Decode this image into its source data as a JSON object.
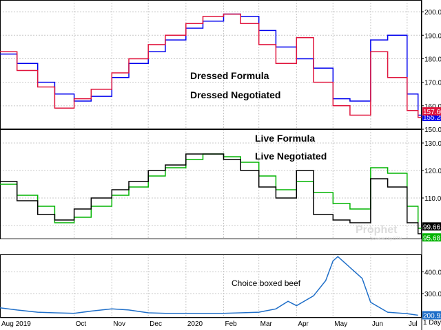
{
  "chart_data": [
    {
      "type": "line",
      "ylim": [
        150,
        205
      ],
      "y_ticks": [
        150,
        160,
        170,
        180,
        190,
        200
      ],
      "grid": true,
      "series": [
        {
          "name": "Dressed Formula",
          "color": "#0000ee",
          "last_value": "155.25",
          "x": [
            "2019-08-01",
            "2019-08-15",
            "2019-09-01",
            "2019-09-15",
            "2019-10-01",
            "2019-10-15",
            "2019-11-01",
            "2019-11-15",
            "2019-12-01",
            "2019-12-15",
            "2020-01-01",
            "2020-01-15",
            "2020-02-01",
            "2020-02-15",
            "2020-03-01",
            "2020-03-15",
            "2020-04-01",
            "2020-04-15",
            "2020-05-01",
            "2020-05-15",
            "2020-06-01",
            "2020-06-15",
            "2020-07-01",
            "2020-07-10"
          ],
          "y": [
            182,
            178,
            170,
            165,
            162,
            164,
            172,
            178,
            183,
            188,
            193,
            196,
            199,
            198,
            192,
            185,
            180,
            176,
            163,
            162,
            188,
            190,
            165,
            156
          ]
        },
        {
          "name": "Dressed Negotiated",
          "color": "#e0143c",
          "last_value": "157.60",
          "x": [
            "2019-08-01",
            "2019-08-15",
            "2019-09-01",
            "2019-09-15",
            "2019-10-01",
            "2019-10-15",
            "2019-11-01",
            "2019-11-15",
            "2019-12-01",
            "2019-12-15",
            "2020-01-01",
            "2020-01-15",
            "2020-02-01",
            "2020-02-15",
            "2020-03-01",
            "2020-03-15",
            "2020-04-01",
            "2020-04-15",
            "2020-05-01",
            "2020-05-15",
            "2020-06-01",
            "2020-06-15",
            "2020-07-01",
            "2020-07-10"
          ],
          "y": [
            183,
            175,
            168,
            159,
            163,
            167,
            174,
            180,
            186,
            190,
            195,
            198,
            199,
            195,
            186,
            178,
            189,
            170,
            160,
            156,
            183,
            172,
            158,
            155
          ]
        }
      ]
    },
    {
      "type": "line",
      "ylim": [
        95,
        135
      ],
      "y_ticks": [
        100,
        110,
        120,
        130
      ],
      "grid": true,
      "series": [
        {
          "name": "Live Formula",
          "color": "#00b400",
          "last_value": "95.68",
          "x": [
            "2019-08-01",
            "2019-08-15",
            "2019-09-01",
            "2019-09-15",
            "2019-10-01",
            "2019-10-15",
            "2019-11-01",
            "2019-11-15",
            "2019-12-01",
            "2019-12-15",
            "2020-01-01",
            "2020-01-15",
            "2020-02-01",
            "2020-02-15",
            "2020-03-01",
            "2020-03-15",
            "2020-04-01",
            "2020-04-15",
            "2020-05-01",
            "2020-05-15",
            "2020-06-01",
            "2020-06-15",
            "2020-07-01",
            "2020-07-10"
          ],
          "y": [
            115,
            111,
            107,
            101,
            103,
            107,
            111,
            114,
            118,
            121,
            124,
            126,
            125,
            123,
            118,
            113,
            116,
            112,
            108,
            106,
            121,
            119,
            107,
            99
          ]
        },
        {
          "name": "Live Negotiated",
          "color": "#000000",
          "last_value": "99.66",
          "x": [
            "2019-08-01",
            "2019-08-15",
            "2019-09-01",
            "2019-09-15",
            "2019-10-01",
            "2019-10-15",
            "2019-11-01",
            "2019-11-15",
            "2019-12-01",
            "2019-12-15",
            "2020-01-01",
            "2020-01-15",
            "2020-02-01",
            "2020-02-15",
            "2020-03-01",
            "2020-03-15",
            "2020-04-01",
            "2020-04-15",
            "2020-05-01",
            "2020-05-15",
            "2020-06-01",
            "2020-06-15",
            "2020-07-01",
            "2020-07-10"
          ],
          "y": [
            116,
            109,
            104,
            102,
            106,
            110,
            113,
            116,
            120,
            122,
            126,
            126,
            124,
            120,
            114,
            110,
            120,
            104,
            102,
            101,
            117,
            114,
            101,
            97
          ]
        }
      ]
    },
    {
      "type": "area",
      "ylim": [
        190,
        480
      ],
      "y_ticks": [
        300,
        400
      ],
      "grid": true,
      "series": [
        {
          "name": "Choice boxed beef",
          "color": "#1e6ec8",
          "last_value": "200.92",
          "x": [
            "2019-08-01",
            "2019-08-15",
            "2019-09-01",
            "2019-09-15",
            "2019-10-01",
            "2019-10-15",
            "2019-11-01",
            "2019-11-15",
            "2019-12-01",
            "2019-12-15",
            "2020-01-01",
            "2020-01-15",
            "2020-02-01",
            "2020-02-15",
            "2020-03-01",
            "2020-03-15",
            "2020-03-25",
            "2020-04-01",
            "2020-04-15",
            "2020-04-25",
            "2020-05-01",
            "2020-05-05",
            "2020-05-15",
            "2020-05-25",
            "2020-06-01",
            "2020-06-15",
            "2020-07-01",
            "2020-07-10"
          ],
          "y": [
            235,
            225,
            215,
            212,
            210,
            220,
            230,
            225,
            212,
            210,
            210,
            208,
            210,
            212,
            215,
            230,
            265,
            245,
            290,
            360,
            450,
            470,
            420,
            370,
            260,
            215,
            208,
            201
          ]
        }
      ]
    }
  ],
  "x_axis": {
    "labels": [
      {
        "date": "2019-08-01",
        "text": "Aug 2019"
      },
      {
        "date": "2019-10-01",
        "text": "Oct"
      },
      {
        "date": "2019-11-01",
        "text": "Nov"
      },
      {
        "date": "2019-12-01",
        "text": "Dec"
      },
      {
        "date": "2020-01-01",
        "text": "2020"
      },
      {
        "date": "2020-02-01",
        "text": "Feb"
      },
      {
        "date": "2020-03-01",
        "text": "Mar"
      },
      {
        "date": "2020-04-01",
        "text": "Apr"
      },
      {
        "date": "2020-05-01",
        "text": "May"
      },
      {
        "date": "2020-06-01",
        "text": "Jun"
      },
      {
        "date": "2020-07-01",
        "text": "Jul"
      }
    ],
    "range": [
      "2019-08-01",
      "2020-07-13"
    ],
    "interval_label": "1 Day"
  },
  "annotations": [
    {
      "text": "Dressed Formula",
      "color": "#0000ee",
      "panel": 0
    },
    {
      "text": "Dressed Negotiated",
      "color": "#e0143c",
      "panel": 0
    },
    {
      "text": "Live Formula",
      "color": "#00b400",
      "panel": 1
    },
    {
      "text": "Live Negotiated",
      "color": "#000000",
      "panel": 1
    },
    {
      "text": "Choice boxed beef",
      "color": "#1e6ec8",
      "panel": 2
    }
  ],
  "watermark": {
    "text": "Prophet",
    "sub": "powered by DTN"
  }
}
